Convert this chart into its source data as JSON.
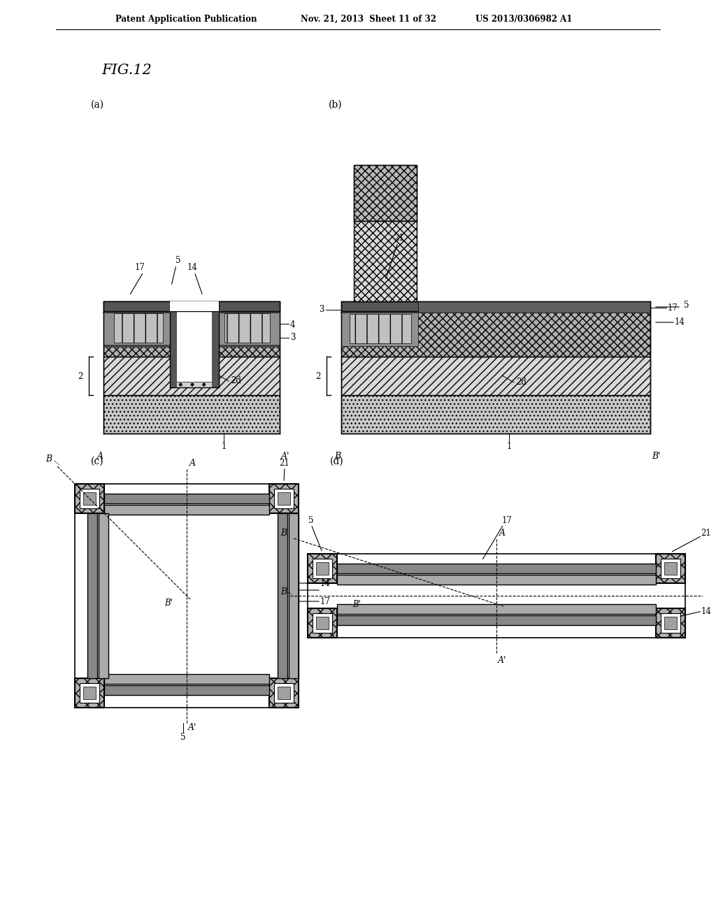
{
  "bg_color": "#ffffff",
  "header_text_left": "Patent Application Publication",
  "header_text_mid": "Nov. 21, 2013  Sheet 11 of 32",
  "header_text_right": "US 2013/0306982 A1",
  "fig_label": "FIG.12",
  "colors": {
    "substrate_dot": "#c8c8c8",
    "layer_hatch_diagonal": "#d0d0d0",
    "layer_dark_gray": "#606060",
    "layer_medium_gray": "#909090",
    "layer_light_gray": "#b8b8b8",
    "layer_xhatch": "#a0a0a0",
    "pillar_xhatch": "#c0c0c0",
    "white": "#ffffff",
    "black": "#000000",
    "gate_stripe": "#b0b0b0",
    "corner_block": "#a8a8a8"
  }
}
